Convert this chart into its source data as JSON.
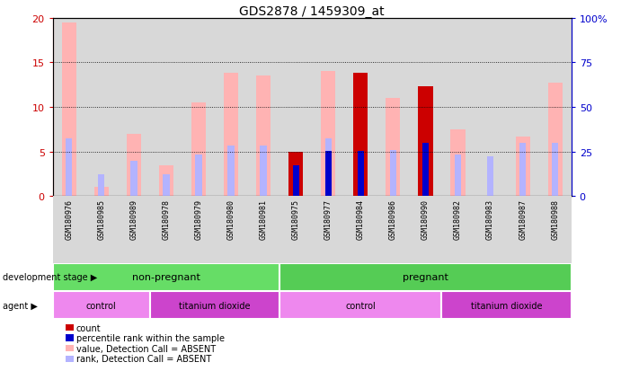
{
  "title": "GDS2878 / 1459309_at",
  "samples": [
    "GSM180976",
    "GSM180985",
    "GSM180989",
    "GSM180978",
    "GSM180979",
    "GSM180980",
    "GSM180981",
    "GSM180975",
    "GSM180977",
    "GSM180984",
    "GSM180986",
    "GSM180990",
    "GSM180982",
    "GSM180983",
    "GSM180987",
    "GSM180988"
  ],
  "pink_value": [
    19.5,
    1.0,
    7.0,
    3.5,
    10.5,
    13.8,
    13.5,
    0.0,
    14.0,
    0.0,
    11.0,
    0.0,
    7.5,
    0.0,
    6.7,
    12.7
  ],
  "light_blue_rank": [
    6.5,
    2.5,
    4.0,
    2.5,
    4.7,
    5.7,
    5.7,
    3.5,
    6.5,
    5.2,
    5.2,
    6.0,
    4.7,
    4.5,
    6.0,
    6.0
  ],
  "dark_red_count": [
    0,
    0,
    0,
    0,
    0,
    0,
    0,
    5.0,
    0,
    13.8,
    0,
    12.3,
    0,
    0,
    0,
    0
  ],
  "dark_blue_percentile": [
    0,
    0,
    0,
    0,
    0,
    0,
    0,
    3.5,
    5.1,
    5.1,
    0,
    6.0,
    0,
    0,
    0,
    0
  ],
  "ylim": [
    0,
    20
  ],
  "y2lim": [
    0,
    100
  ],
  "yticks": [
    0,
    5,
    10,
    15,
    20
  ],
  "y2ticks": [
    0,
    25,
    50,
    75,
    100
  ],
  "dev_stage_split": 7,
  "agent_splits": [
    0,
    3,
    7,
    12,
    16
  ],
  "agent_labels": [
    "control",
    "titanium dioxide",
    "control",
    "titanium dioxide"
  ],
  "agent_colors": [
    "#ee88ee",
    "#cc44cc",
    "#ee88ee",
    "#cc44cc"
  ],
  "dev_colors": [
    "#66dd66",
    "#55cc55"
  ],
  "dev_labels": [
    "non-pregnant",
    "pregnant"
  ],
  "legend_items": [
    {
      "color": "#cc0000",
      "label": "count"
    },
    {
      "color": "#0000cc",
      "label": "percentile rank within the sample"
    },
    {
      "color": "#ffb3b3",
      "label": "value, Detection Call = ABSENT"
    },
    {
      "color": "#b3b3ff",
      "label": "rank, Detection Call = ABSENT"
    }
  ],
  "bar_width": 0.45,
  "pink_color": "#ffb3b3",
  "light_blue_color": "#b3b3ff",
  "dark_red_color": "#cc0000",
  "dark_blue_color": "#0000cc",
  "left_tick_color": "#cc0000",
  "right_tick_color": "#0000cc",
  "grid_color": "black",
  "grid_linestyle": "dotted",
  "grid_levels": [
    5,
    10,
    15
  ],
  "xlabel_fontsize": 6.0,
  "ylabel_fontsize": 8,
  "title_fontsize": 10
}
